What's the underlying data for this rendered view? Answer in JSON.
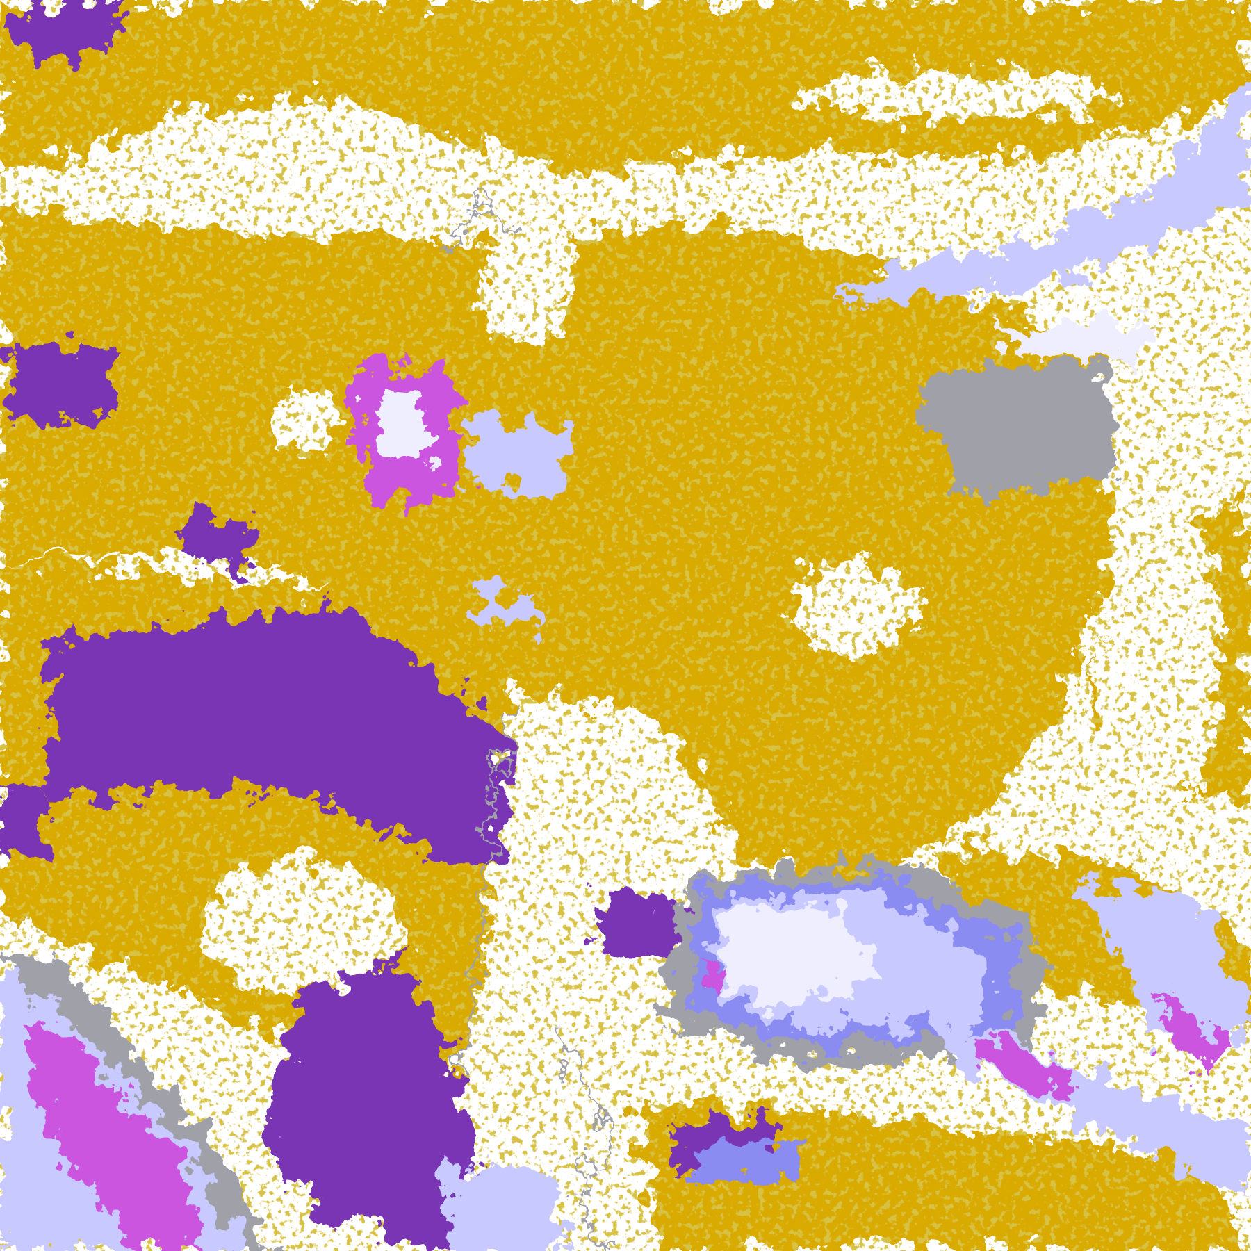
{
  "image": {
    "kind": "false-color satellite cloud classification",
    "palette": {
      "background": "#ffffff",
      "gold": "#d9aa00",
      "dark_gold": "#b08a10",
      "purple": "#7a36b4",
      "magenta": "#cc55e0",
      "periwinkle": "#8a8cf2",
      "lavender": "#c8caff",
      "pale_lavender": "#eeeeff",
      "gray": "#a0a0a8"
    }
  }
}
